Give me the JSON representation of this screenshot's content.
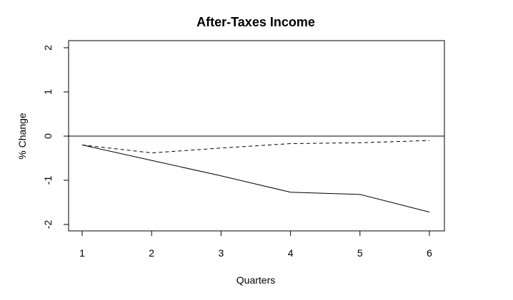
{
  "chart_data": {
    "type": "line",
    "title": "After-Taxes Income",
    "xlabel": "Quarters",
    "ylabel": "% Change",
    "x": [
      1,
      2,
      3,
      4,
      5,
      6
    ],
    "xticks": [
      "1",
      "2",
      "3",
      "4",
      "5",
      "6"
    ],
    "yticks": [
      "2",
      "1",
      "0",
      "-1",
      "-2"
    ],
    "xlim": [
      0.98,
      6.2
    ],
    "ylim": [
      -2.1,
      2.1
    ],
    "reference_line_y": 0,
    "grid": false,
    "series": [
      {
        "style": "solid",
        "values": [
          -0.2,
          -0.55,
          -0.9,
          -1.27,
          -1.32,
          -1.72
        ]
      },
      {
        "style": "dashed",
        "values": [
          -0.2,
          -0.38,
          -0.27,
          -0.17,
          -0.15,
          -0.1
        ]
      }
    ]
  }
}
